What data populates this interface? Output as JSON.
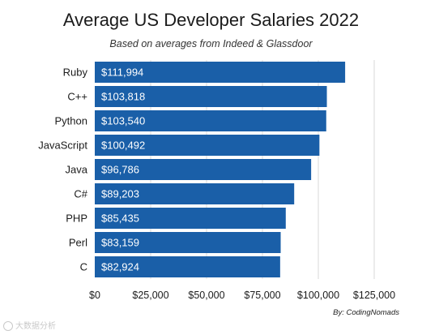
{
  "chart_data": {
    "type": "bar",
    "orientation": "horizontal",
    "title": "Average US Developer Salaries 2022",
    "subtitle": "Based on averages from Indeed & Glassdoor",
    "categories": [
      "Ruby",
      "C++",
      "Python",
      "JavaScript",
      "Java",
      "C#",
      "PHP",
      "Perl",
      "C"
    ],
    "values": [
      111994,
      103818,
      103540,
      100492,
      96786,
      89203,
      85435,
      83159,
      82924
    ],
    "data_labels": [
      "$111,994",
      "$103,818",
      "$103,540",
      "$100,492",
      "$96,786",
      "$89,203",
      "$85,435",
      "$83,159",
      "$82,924"
    ],
    "x_ticks": [
      0,
      25000,
      50000,
      75000,
      100000,
      125000
    ],
    "x_tick_labels": [
      "$0",
      "$25,000",
      "$50,000",
      "$75,000",
      "$100,000",
      "$125,000"
    ],
    "xlim": [
      0,
      125000
    ],
    "grid": "vertical",
    "bar_color": "#1a5fa8",
    "label_color": "#ffffff",
    "credit": "By: CodingNomads"
  },
  "watermark": "大数据分析"
}
